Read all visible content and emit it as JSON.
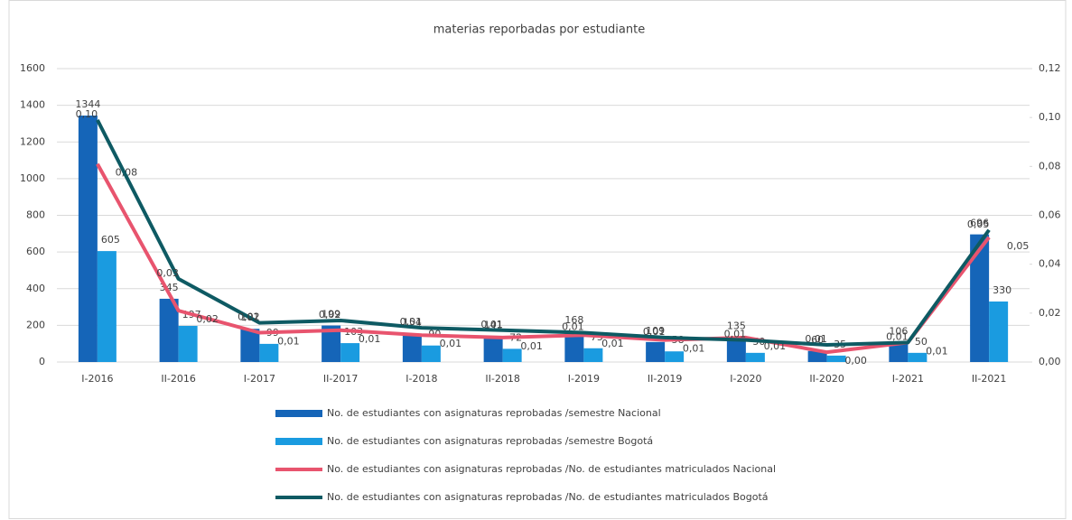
{
  "chart_data": {
    "type": "bar_line",
    "subtitle": "materias reporbadas por estudiante",
    "categories": [
      "I-2016",
      "II-2016",
      "I-2017",
      "II-2017",
      "I-2018",
      "II-2018",
      "I-2019",
      "II-2019",
      "I-2020",
      "II-2020",
      "I-2021",
      "II-2021"
    ],
    "ylim": [
      0,
      1600
    ],
    "yticks": [
      0,
      200,
      400,
      600,
      800,
      1000,
      1200,
      1400,
      1600
    ],
    "y2lim": [
      0,
      0.12
    ],
    "y2ticks": [
      {
        "value": 0,
        "label": "0,00"
      },
      {
        "value": 0.02,
        "label": "0,02"
      },
      {
        "value": 0.04,
        "label": "0,04"
      },
      {
        "value": 0.06,
        "label": "0,06"
      },
      {
        "value": 0.08,
        "label": "0,08"
      },
      {
        "value": 0.1,
        "label": "0,10"
      },
      {
        "value": 0.12,
        "label": "0,12"
      }
    ],
    "grid": true,
    "series": [
      {
        "name": "No. de estudiantes con asignaturas reprobadas /semestre Nacional",
        "type": "bar",
        "color": "#1565b8",
        "values": [
          1344,
          345,
          181,
          199,
          154,
          141,
          168,
          109,
          135,
          60,
          106,
          696
        ]
      },
      {
        "name": "No. de estudiantes con asignaturas reprobadas /semestre Bogotá",
        "type": "bar",
        "color": "#1a9be0",
        "values": [
          605,
          197,
          99,
          103,
          90,
          72,
          75,
          58,
          50,
          35,
          50,
          330
        ]
      },
      {
        "name": "No. de estudiantes con asignaturas reprobadas /No. de estudiantes matriculados Nacional",
        "type": "line",
        "axis": "y2",
        "color": "#e8546e",
        "values": [
          0.081,
          0.021,
          0.012,
          0.013,
          0.011,
          0.01,
          0.011,
          0.009,
          0.01,
          0.004,
          0.008,
          0.051
        ],
        "value_labels": [
          "0,08",
          "0,02",
          "0,01",
          "0,01",
          "0,01",
          "0,01",
          "0,01",
          "0,01",
          "0,01",
          "0,00",
          "0,01",
          "0,05"
        ]
      },
      {
        "name": "No. de estudiantes con asignaturas reprobadas /No. de estudiantes matriculados Bogotá",
        "type": "line",
        "axis": "y2",
        "color": "#0e5a63",
        "values": [
          0.099,
          0.034,
          0.016,
          0.017,
          0.014,
          0.013,
          0.012,
          0.01,
          0.009,
          0.007,
          0.008,
          0.054
        ],
        "value_labels": [
          "0,10",
          "0,03",
          "0,02",
          "0,02",
          "0,01",
          "0,01",
          "0,01",
          "0,01",
          "0,01",
          "0,01",
          "0,01",
          "0,05"
        ]
      }
    ]
  }
}
